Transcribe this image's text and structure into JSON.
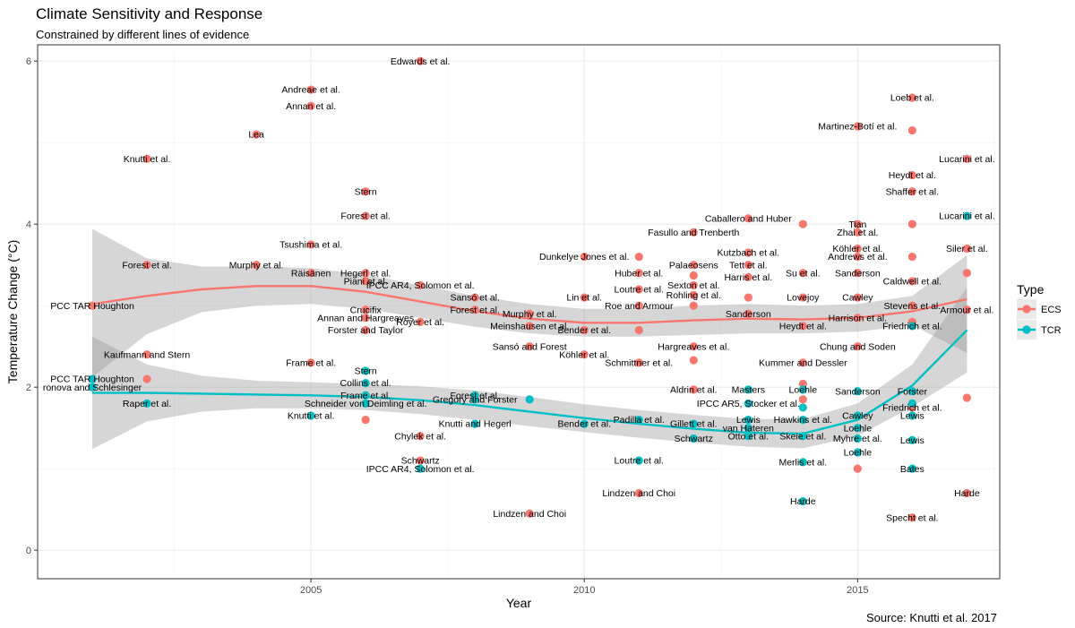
{
  "chart_data": {
    "type": "scatter",
    "title": "Climate Sensitivity and Response",
    "subtitle": "Constrained by different lines of evidence",
    "xlabel": "Year",
    "ylabel": "Temperature Change (°C)",
    "caption": "Source: Knutti et al. 2017",
    "xlim": [
      2000,
      2017.6
    ],
    "ylim": [
      -0.35,
      6.2
    ],
    "xticks": [
      2005,
      2010,
      2015
    ],
    "yticks": [
      0,
      2,
      4,
      6
    ],
    "legend": {
      "title": "Type",
      "position": "right",
      "entries": [
        "ECS",
        "TCR"
      ]
    },
    "colors": {
      "ECS": "#F8766D",
      "TCR": "#00BFC4",
      "band": "#999999",
      "grid": "#ebebeb",
      "panel_border": "#333333"
    },
    "series": [
      {
        "name": "ECS",
        "points": [
          {
            "x": 2001,
            "y": 3.0,
            "label": "PCC TAR Houghton"
          },
          {
            "x": 2002,
            "y": 3.5,
            "label": "Forest et al."
          },
          {
            "x": 2002,
            "y": 4.8,
            "label": "Knutti et al."
          },
          {
            "x": 2002,
            "y": 2.4,
            "label": "Kaufmann and Stern"
          },
          {
            "x": 2002,
            "y": 2.1,
            "label": ""
          },
          {
            "x": 2004,
            "y": 5.1,
            "label": "Lea"
          },
          {
            "x": 2004,
            "y": 3.5,
            "label": "Murphy et al."
          },
          {
            "x": 2005,
            "y": 5.65,
            "label": "Andreae et al."
          },
          {
            "x": 2005,
            "y": 5.45,
            "label": "Annan et al."
          },
          {
            "x": 2005,
            "y": 3.75,
            "label": "Tsushima et al."
          },
          {
            "x": 2005,
            "y": 3.4,
            "label": "Räisänen"
          },
          {
            "x": 2005,
            "y": 2.3,
            "label": "Frame et al."
          },
          {
            "x": 2006,
            "y": 4.4,
            "label": "Stern"
          },
          {
            "x": 2006,
            "y": 4.1,
            "label": "Forest et al."
          },
          {
            "x": 2006,
            "y": 3.4,
            "label": "Hegerl et al."
          },
          {
            "x": 2006,
            "y": 3.3,
            "label": "Piani et al."
          },
          {
            "x": 2006,
            "y": 2.95,
            "label": "Crucifix"
          },
          {
            "x": 2006,
            "y": 2.85,
            "label": "Annan and Hargreaves"
          },
          {
            "x": 2006,
            "y": 2.7,
            "label": "Forster and Taylor"
          },
          {
            "x": 2006,
            "y": 1.6,
            "label": ""
          },
          {
            "x": 2007,
            "y": 6.0,
            "label": "Edwards et al."
          },
          {
            "x": 2007,
            "y": 3.25,
            "label": "IPCC AR4, Solomon et al."
          },
          {
            "x": 2007,
            "y": 2.8,
            "label": "Royer et al."
          },
          {
            "x": 2007,
            "y": 1.4,
            "label": "Chylek et al."
          },
          {
            "x": 2007,
            "y": 1.1,
            "label": "Schwartz"
          },
          {
            "x": 2008,
            "y": 3.1,
            "label": "Sansó et al."
          },
          {
            "x": 2008,
            "y": 2.95,
            "label": "Forest et al."
          },
          {
            "x": 2009,
            "y": 2.9,
            "label": "Murphy et al."
          },
          {
            "x": 2009,
            "y": 2.75,
            "label": "Meinshausen et al."
          },
          {
            "x": 2009,
            "y": 2.5,
            "label": "Sansó and Forest"
          },
          {
            "x": 2009,
            "y": 0.45,
            "label": "Lindzen and Choi"
          },
          {
            "x": 2010,
            "y": 3.6,
            "label": "Dunkelye Jones et al."
          },
          {
            "x": 2010,
            "y": 3.1,
            "label": "Lin et al."
          },
          {
            "x": 2010,
            "y": 2.7,
            "label": "Bender et al."
          },
          {
            "x": 2010,
            "y": 2.4,
            "label": "Köhler et al."
          },
          {
            "x": 2011,
            "y": 3.6,
            "label": ""
          },
          {
            "x": 2011,
            "y": 3.4,
            "label": "Huber et al."
          },
          {
            "x": 2011,
            "y": 3.2,
            "label": "Loutre et al."
          },
          {
            "x": 2011,
            "y": 3.0,
            "label": "Roe and Armour"
          },
          {
            "x": 2011,
            "y": 2.7,
            "label": ""
          },
          {
            "x": 2011,
            "y": 2.3,
            "label": "Schmittner et al."
          },
          {
            "x": 2011,
            "y": 0.7,
            "label": "Lindzen and Choi"
          },
          {
            "x": 2012,
            "y": 3.9,
            "label": "Fasullo and Trenberth"
          },
          {
            "x": 2012,
            "y": 3.5,
            "label": "Palaeosens"
          },
          {
            "x": 2012,
            "y": 3.37,
            "label": ""
          },
          {
            "x": 2012,
            "y": 3.25,
            "label": "Sexton et al."
          },
          {
            "x": 2012,
            "y": 3.13,
            "label": "Rohling et al."
          },
          {
            "x": 2012,
            "y": 3.0,
            "label": ""
          },
          {
            "x": 2012,
            "y": 2.5,
            "label": "Hargreaves et al."
          },
          {
            "x": 2012,
            "y": 2.33,
            "label": ""
          },
          {
            "x": 2012,
            "y": 1.97,
            "label": "Aldrin et al."
          },
          {
            "x": 2013,
            "y": 4.07,
            "label": "Caballero and Huber"
          },
          {
            "x": 2013,
            "y": 3.65,
            "label": "Kutzbach et al."
          },
          {
            "x": 2013,
            "y": 3.5,
            "label": "Tett et al."
          },
          {
            "x": 2013,
            "y": 3.35,
            "label": "Harris et al."
          },
          {
            "x": 2013,
            "y": 3.1,
            "label": ""
          },
          {
            "x": 2013,
            "y": 2.9,
            "label": "Sanderson"
          },
          {
            "x": 2014,
            "y": 4.0,
            "label": ""
          },
          {
            "x": 2014,
            "y": 3.4,
            "label": "Su et al."
          },
          {
            "x": 2014,
            "y": 3.1,
            "label": "Lovejoy"
          },
          {
            "x": 2014,
            "y": 2.75,
            "label": "Heydt et al."
          },
          {
            "x": 2014,
            "y": 2.3,
            "label": "Kummer and Dessler"
          },
          {
            "x": 2014,
            "y": 2.04,
            "label": ""
          },
          {
            "x": 2014,
            "y": 1.85,
            "label": ""
          },
          {
            "x": 2015,
            "y": 5.2,
            "label": "Martinez-Botí et al."
          },
          {
            "x": 2015,
            "y": 4.0,
            "label": "Tian"
          },
          {
            "x": 2015,
            "y": 3.9,
            "label": "Zhai et al."
          },
          {
            "x": 2015,
            "y": 3.7,
            "label": "Köhler et al."
          },
          {
            "x": 2015,
            "y": 3.6,
            "label": "Andrews et al."
          },
          {
            "x": 2015,
            "y": 3.4,
            "label": "Sanderson"
          },
          {
            "x": 2015,
            "y": 3.1,
            "label": "Cawley"
          },
          {
            "x": 2015,
            "y": 2.85,
            "label": "Harrison et al."
          },
          {
            "x": 2015,
            "y": 2.5,
            "label": "Chung and Soden"
          },
          {
            "x": 2015,
            "y": 1.0,
            "label": ""
          },
          {
            "x": 2016,
            "y": 5.55,
            "label": "Loeb et al."
          },
          {
            "x": 2016,
            "y": 5.15,
            "label": ""
          },
          {
            "x": 2016,
            "y": 4.6,
            "label": "Heydt et al."
          },
          {
            "x": 2016,
            "y": 4.4,
            "label": "Shaffer et al."
          },
          {
            "x": 2016,
            "y": 4.0,
            "label": ""
          },
          {
            "x": 2016,
            "y": 3.6,
            "label": ""
          },
          {
            "x": 2016,
            "y": 3.3,
            "label": "Caldwell et al."
          },
          {
            "x": 2016,
            "y": 3.0,
            "label": "Stevens et al."
          },
          {
            "x": 2016,
            "y": 2.8,
            "label": ""
          },
          {
            "x": 2016,
            "y": 1.75,
            "label": "Friedrich et al."
          },
          {
            "x": 2016,
            "y": 0.4,
            "label": "Specht et al."
          },
          {
            "x": 2017,
            "y": 4.8,
            "label": "Lucarini et al."
          },
          {
            "x": 2017,
            "y": 3.7,
            "label": "Siler et al."
          },
          {
            "x": 2017,
            "y": 3.4,
            "label": ""
          },
          {
            "x": 2017,
            "y": 2.95,
            "label": "Armour et al."
          },
          {
            "x": 2017,
            "y": 1.87,
            "label": ""
          },
          {
            "x": 2017,
            "y": 0.7,
            "label": "Harde"
          }
        ],
        "smooth": {
          "x": [
            2001,
            2002,
            2003,
            2004,
            2005,
            2006,
            2007,
            2008,
            2009,
            2010,
            2011,
            2012,
            2013,
            2014,
            2015,
            2016,
            2017
          ],
          "y": [
            3.02,
            3.12,
            3.2,
            3.24,
            3.24,
            3.17,
            3.05,
            2.93,
            2.84,
            2.79,
            2.79,
            2.82,
            2.84,
            2.83,
            2.85,
            2.93,
            3.08
          ],
          "lower": [
            2.12,
            2.65,
            2.92,
            3.0,
            3.02,
            2.96,
            2.85,
            2.74,
            2.66,
            2.62,
            2.62,
            2.64,
            2.66,
            2.66,
            2.68,
            2.76,
            2.42
          ],
          "upper": [
            3.94,
            3.58,
            3.48,
            3.48,
            3.46,
            3.38,
            3.25,
            3.12,
            3.02,
            2.96,
            2.96,
            3.0,
            3.02,
            3.0,
            3.02,
            3.12,
            3.62
          ]
        }
      },
      {
        "name": "TCR",
        "points": [
          {
            "x": 2001,
            "y": 2.1,
            "label": "PCC TAR Houghton"
          },
          {
            "x": 2001,
            "y": 2.0,
            "label": "ronova and Schlesinger"
          },
          {
            "x": 2002,
            "y": 1.8,
            "label": "Raper et al."
          },
          {
            "x": 2005,
            "y": 1.65,
            "label": "Knutti et al."
          },
          {
            "x": 2006,
            "y": 2.2,
            "label": "Stern"
          },
          {
            "x": 2006,
            "y": 2.05,
            "label": "Collins et al."
          },
          {
            "x": 2006,
            "y": 1.9,
            "label": "Frame et al."
          },
          {
            "x": 2006,
            "y": 1.8,
            "label": "Schneider von Deimling et al."
          },
          {
            "x": 2007,
            "y": 1.0,
            "label": "IPCC AR4, Solomon et al."
          },
          {
            "x": 2008,
            "y": 1.9,
            "label": "Forest et al."
          },
          {
            "x": 2008,
            "y": 1.85,
            "label": "Gregory and Forster"
          },
          {
            "x": 2008,
            "y": 1.55,
            "label": "Knutti and Hegerl"
          },
          {
            "x": 2009,
            "y": 1.85,
            "label": ""
          },
          {
            "x": 2010,
            "y": 1.55,
            "label": "Bender et al."
          },
          {
            "x": 2011,
            "y": 1.6,
            "label": "Padilla et al."
          },
          {
            "x": 2011,
            "y": 1.1,
            "label": "Loutre et al."
          },
          {
            "x": 2012,
            "y": 1.55,
            "label": "Gillett et al."
          },
          {
            "x": 2012,
            "y": 1.37,
            "label": "Schwartz"
          },
          {
            "x": 2013,
            "y": 1.97,
            "label": "Masters"
          },
          {
            "x": 2013,
            "y": 1.8,
            "label": "IPCC AR5, Stocker et al."
          },
          {
            "x": 2013,
            "y": 1.6,
            "label": "Lewis"
          },
          {
            "x": 2013,
            "y": 1.5,
            "label": "van Hateren"
          },
          {
            "x": 2013,
            "y": 1.4,
            "label": "Otto et al."
          },
          {
            "x": 2014,
            "y": 1.97,
            "label": "Loehle"
          },
          {
            "x": 2014,
            "y": 1.75,
            "label": ""
          },
          {
            "x": 2014,
            "y": 1.6,
            "label": "Hawkins et al."
          },
          {
            "x": 2014,
            "y": 1.4,
            "label": "Skeie et al."
          },
          {
            "x": 2014,
            "y": 1.08,
            "label": "Merlis et al."
          },
          {
            "x": 2014,
            "y": 0.6,
            "label": "Harde"
          },
          {
            "x": 2015,
            "y": 1.95,
            "label": "Sanderson"
          },
          {
            "x": 2015,
            "y": 1.65,
            "label": "Cawley"
          },
          {
            "x": 2015,
            "y": 1.5,
            "label": "Loehle"
          },
          {
            "x": 2015,
            "y": 1.37,
            "label": "Myhre et al."
          },
          {
            "x": 2015,
            "y": 1.2,
            "label": "Loehle"
          },
          {
            "x": 2016,
            "y": 1.95,
            "label": "Forster"
          },
          {
            "x": 2016,
            "y": 1.8,
            "label": ""
          },
          {
            "x": 2016,
            "y": 1.65,
            "label": "Lewis"
          },
          {
            "x": 2016,
            "y": 1.35,
            "label": "Lewis"
          },
          {
            "x": 2016,
            "y": 1.0,
            "label": "Bates"
          },
          {
            "x": 2016,
            "y": 2.75,
            "label": "Friedrich et al."
          },
          {
            "x": 2017,
            "y": 4.1,
            "label": "Lucarini et al."
          }
        ],
        "smooth": {
          "x": [
            2001,
            2002,
            2003,
            2004,
            2005,
            2006,
            2007,
            2008,
            2009,
            2010,
            2011,
            2012,
            2013,
            2014,
            2015,
            2016,
            2017
          ],
          "y": [
            1.93,
            1.93,
            1.92,
            1.91,
            1.9,
            1.88,
            1.84,
            1.78,
            1.7,
            1.62,
            1.55,
            1.49,
            1.44,
            1.43,
            1.6,
            2.02,
            2.7
          ],
          "lower": [
            1.24,
            1.58,
            1.7,
            1.74,
            1.74,
            1.72,
            1.67,
            1.6,
            1.52,
            1.45,
            1.38,
            1.32,
            1.27,
            1.25,
            1.4,
            1.76,
            2.18
          ],
          "upper": [
            2.62,
            2.28,
            2.14,
            2.08,
            2.06,
            2.04,
            2.01,
            1.96,
            1.88,
            1.79,
            1.72,
            1.66,
            1.61,
            1.61,
            1.8,
            2.28,
            3.22
          ]
        }
      }
    ]
  }
}
